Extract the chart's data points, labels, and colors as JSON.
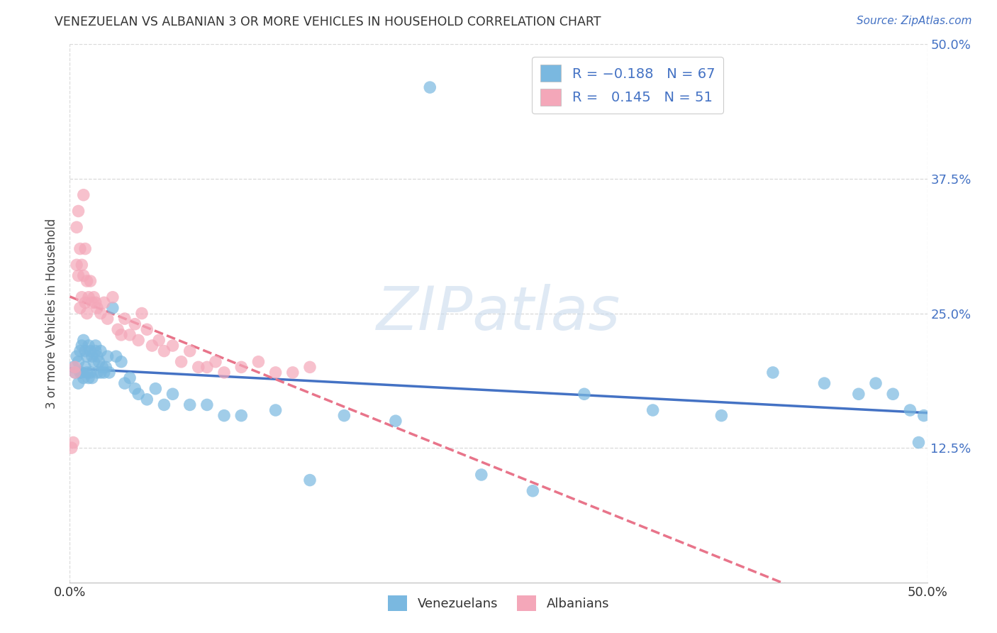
{
  "title": "VENEZUELAN VS ALBANIAN 3 OR MORE VEHICLES IN HOUSEHOLD CORRELATION CHART",
  "source": "Source: ZipAtlas.com",
  "ylabel": "3 or more Vehicles in Household",
  "xlim": [
    0.0,
    0.5
  ],
  "ylim": [
    0.0,
    0.5
  ],
  "legend_venezuelan": "Venezuelans",
  "legend_albanian": "Albanians",
  "color_venezuelan": "#7ab8e0",
  "color_albanian": "#f4a7b9",
  "color_trendline_ven": "#4472c4",
  "color_trendline_alb": "#e8748a",
  "background_color": "#ffffff",
  "grid_color": "#d9d9d9",
  "venezuelan_x": [
    0.002,
    0.003,
    0.004,
    0.005,
    0.005,
    0.006,
    0.006,
    0.007,
    0.007,
    0.008,
    0.008,
    0.009,
    0.009,
    0.01,
    0.01,
    0.011,
    0.011,
    0.012,
    0.012,
    0.013,
    0.013,
    0.014,
    0.015,
    0.015,
    0.016,
    0.016,
    0.017,
    0.018,
    0.018,
    0.019,
    0.02,
    0.021,
    0.022,
    0.023,
    0.025,
    0.027,
    0.03,
    0.032,
    0.035,
    0.038,
    0.04,
    0.045,
    0.05,
    0.055,
    0.06,
    0.07,
    0.08,
    0.09,
    0.1,
    0.12,
    0.14,
    0.16,
    0.19,
    0.21,
    0.24,
    0.27,
    0.3,
    0.34,
    0.38,
    0.41,
    0.44,
    0.46,
    0.47,
    0.48,
    0.49,
    0.495,
    0.498
  ],
  "venezuelan_y": [
    0.2,
    0.195,
    0.21,
    0.205,
    0.185,
    0.215,
    0.195,
    0.22,
    0.195,
    0.225,
    0.19,
    0.215,
    0.2,
    0.21,
    0.195,
    0.22,
    0.19,
    0.215,
    0.195,
    0.21,
    0.19,
    0.205,
    0.22,
    0.215,
    0.195,
    0.21,
    0.205,
    0.195,
    0.215,
    0.2,
    0.195,
    0.2,
    0.21,
    0.195,
    0.255,
    0.21,
    0.205,
    0.185,
    0.19,
    0.18,
    0.175,
    0.17,
    0.18,
    0.165,
    0.175,
    0.165,
    0.165,
    0.155,
    0.155,
    0.16,
    0.095,
    0.155,
    0.15,
    0.46,
    0.1,
    0.085,
    0.175,
    0.16,
    0.155,
    0.195,
    0.185,
    0.175,
    0.185,
    0.175,
    0.16,
    0.13,
    0.155
  ],
  "albanian_x": [
    0.001,
    0.002,
    0.003,
    0.003,
    0.004,
    0.004,
    0.005,
    0.005,
    0.006,
    0.006,
    0.007,
    0.007,
    0.008,
    0.008,
    0.009,
    0.009,
    0.01,
    0.01,
    0.011,
    0.012,
    0.013,
    0.014,
    0.015,
    0.016,
    0.018,
    0.02,
    0.022,
    0.025,
    0.028,
    0.03,
    0.032,
    0.035,
    0.038,
    0.04,
    0.042,
    0.045,
    0.048,
    0.052,
    0.055,
    0.06,
    0.065,
    0.07,
    0.075,
    0.08,
    0.085,
    0.09,
    0.1,
    0.11,
    0.12,
    0.13,
    0.14
  ],
  "albanian_y": [
    0.125,
    0.13,
    0.2,
    0.195,
    0.33,
    0.295,
    0.345,
    0.285,
    0.31,
    0.255,
    0.295,
    0.265,
    0.285,
    0.36,
    0.26,
    0.31,
    0.28,
    0.25,
    0.265,
    0.28,
    0.26,
    0.265,
    0.26,
    0.255,
    0.25,
    0.26,
    0.245,
    0.265,
    0.235,
    0.23,
    0.245,
    0.23,
    0.24,
    0.225,
    0.25,
    0.235,
    0.22,
    0.225,
    0.215,
    0.22,
    0.205,
    0.215,
    0.2,
    0.2,
    0.205,
    0.195,
    0.2,
    0.205,
    0.195,
    0.195,
    0.2
  ]
}
